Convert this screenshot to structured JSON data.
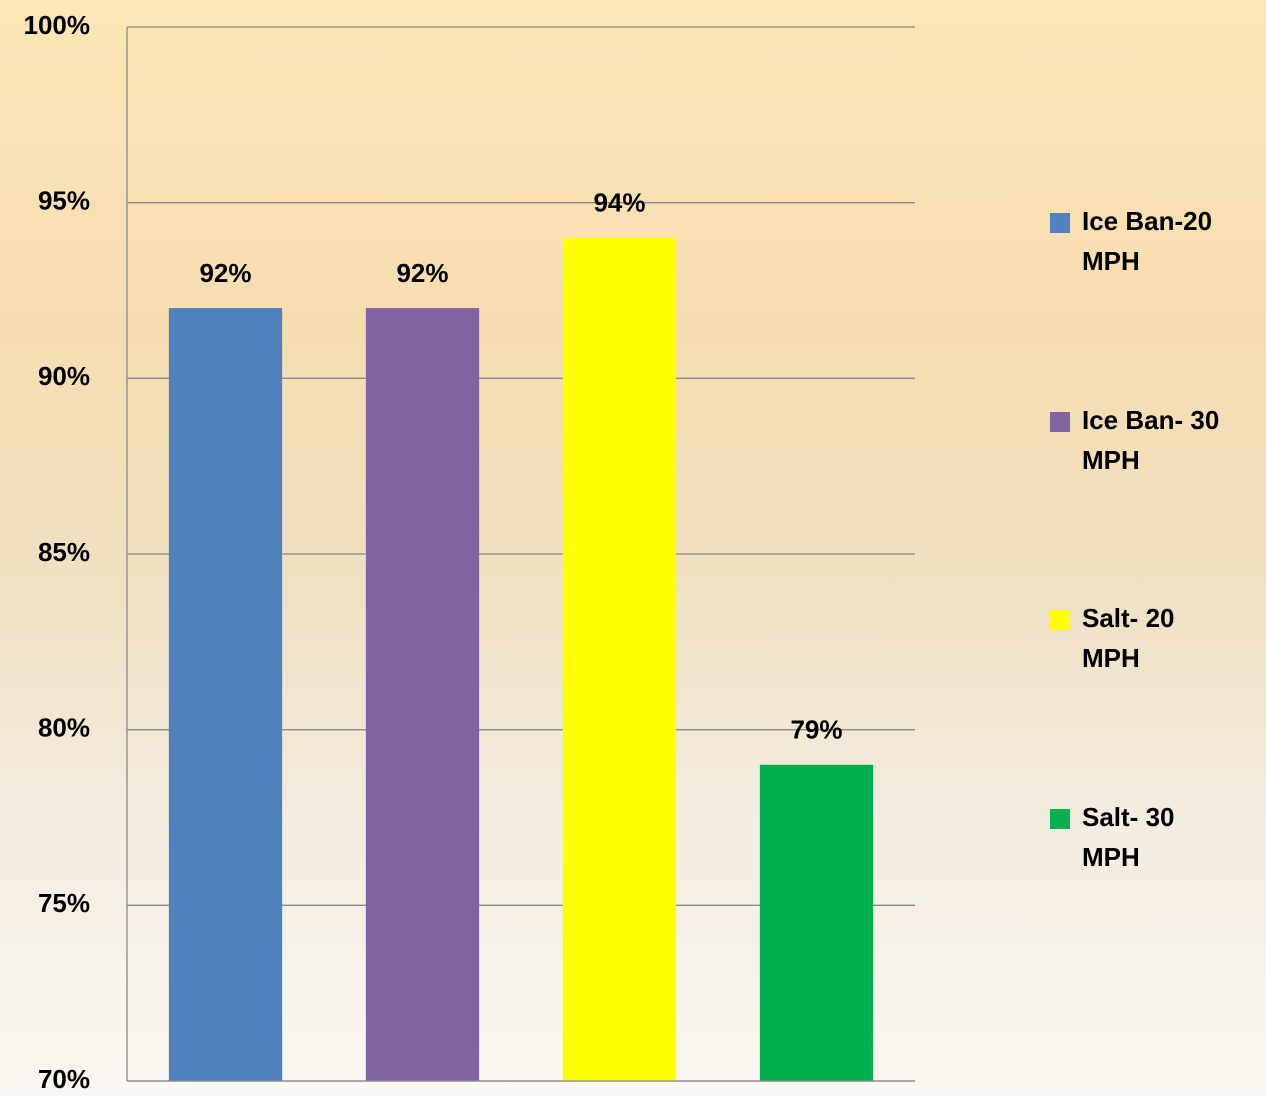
{
  "chart_data": {
    "type": "bar",
    "categories": [
      null
    ],
    "series": [
      {
        "name": "Ice Ban-20 MPH",
        "color": "#4f81bd",
        "values": [
          92
        ],
        "value_labels": [
          "92%"
        ]
      },
      {
        "name": "Ice Ban- 30 MPH",
        "color": "#8064a2",
        "values": [
          92
        ],
        "value_labels": [
          "92%"
        ]
      },
      {
        "name": "Salt- 20 MPH",
        "color": "#ffff00",
        "values": [
          94
        ],
        "value_labels": [
          "94%"
        ]
      },
      {
        "name": "Salt- 30 MPH",
        "color": "#00b050",
        "values": [
          79
        ],
        "value_labels": [
          "79%"
        ]
      }
    ],
    "ylim": [
      70,
      100
    ],
    "yticks": [
      {
        "value": 70,
        "label": "70%"
      },
      {
        "value": 75,
        "label": "75%"
      },
      {
        "value": 80,
        "label": "80%"
      },
      {
        "value": 85,
        "label": "85%"
      },
      {
        "value": 90,
        "label": "90%"
      },
      {
        "value": 95,
        "label": "95%"
      },
      {
        "value": 100,
        "label": "100%"
      }
    ],
    "grid": true,
    "legend": "right"
  }
}
